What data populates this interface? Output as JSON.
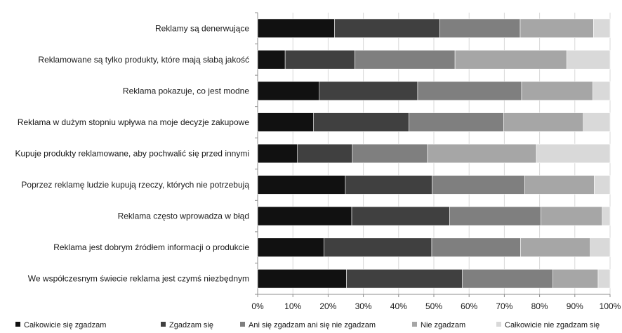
{
  "chart_data": {
    "type": "bar",
    "orientation": "horizontal",
    "stacked": true,
    "title": "",
    "xlabel": "",
    "ylabel": "",
    "xlim": [
      0,
      100
    ],
    "tick_unit": "%",
    "x_ticks": [
      0,
      10,
      20,
      30,
      40,
      50,
      60,
      70,
      80,
      90,
      100
    ],
    "grid": "vertical",
    "legend_position": "bottom",
    "categories": [
      "Reklamy są denerwujące",
      "Reklamowane są tylko produkty, które mają słabą jakość",
      "Reklama pokazuje, co jest modne",
      "Reklama w dużym stopniu wpływa na moje decyzje zakupowe",
      "Kupuje produkty reklamowane, aby pochwalić się przed innymi",
      "Poprzez reklamę ludzie kupują rzeczy, których nie potrzebują",
      "Reklama często wprowadza w błąd",
      "Reklama jest dobrym źródłem informacji o produkcie",
      "We współczesnym świecie reklama jest czymś niezbędnym"
    ],
    "series": [
      {
        "name": "Całkowicie się zgadzam",
        "color": "#111111",
        "values": [
          21.8,
          7.8,
          17.5,
          15.8,
          11.3,
          24.9,
          26.7,
          18.8,
          25.2
        ]
      },
      {
        "name": "Zgadzam się",
        "color": "#404040",
        "values": [
          29.9,
          19.8,
          27.9,
          27.1,
          15.6,
          24.6,
          27.8,
          30.6,
          32.9
        ]
      },
      {
        "name": "Ani się zgadzam ani się nie zgadzam",
        "color": "#7f7f7f",
        "values": [
          22.8,
          28.4,
          29.5,
          26.9,
          21.3,
          26.3,
          25.9,
          25.2,
          25.7
        ]
      },
      {
        "name": "Nie zgadzam",
        "color": "#a6a6a6",
        "values": [
          20.8,
          31.7,
          20.2,
          22.6,
          30.9,
          19.7,
          17.4,
          19.8,
          12.8
        ]
      },
      {
        "name": "Całkowicie nie zgadzam się",
        "color": "#d9d9d9",
        "values": [
          4.7,
          12.3,
          4.9,
          7.6,
          20.9,
          4.5,
          2.2,
          5.6,
          3.4
        ]
      }
    ]
  }
}
